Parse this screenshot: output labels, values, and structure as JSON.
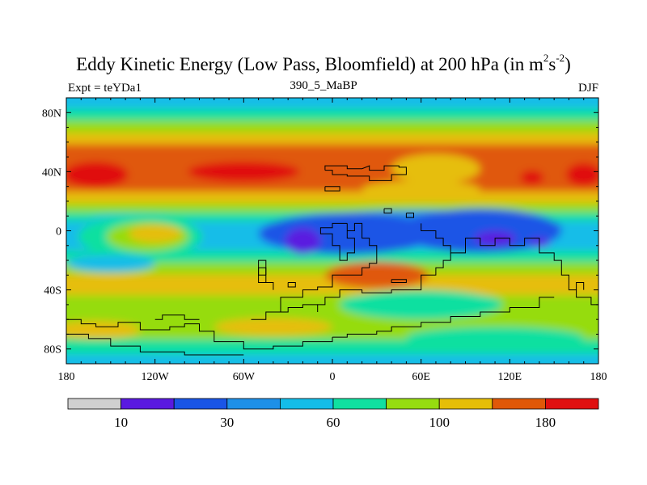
{
  "title_main": "Eddy Kinetic Energy (Low Pass, Bloomfield) at 200 hPa (in m",
  "title_sup1": "2",
  "title_mid": "s",
  "title_sup2": "-2",
  "title_end": ")",
  "expt_label": "Expt = teYDa1",
  "subtitle": "390_5_MaBP",
  "season": "DJF",
  "chart_data": {
    "type": "heatmap",
    "xlim": [
      -180,
      180
    ],
    "ylim": [
      -90,
      90
    ],
    "x_ticks": [
      {
        "value": -180,
        "label": "180"
      },
      {
        "value": -120,
        "label": "120W"
      },
      {
        "value": -60,
        "label": "60W"
      },
      {
        "value": 0,
        "label": "0"
      },
      {
        "value": 60,
        "label": "60E"
      },
      {
        "value": 120,
        "label": "120E"
      },
      {
        "value": 180,
        "label": "180"
      }
    ],
    "y_ticks": [
      {
        "value": 80,
        "label": "80N"
      },
      {
        "value": 40,
        "label": "40N"
      },
      {
        "value": 0,
        "label": "0"
      },
      {
        "value": -40,
        "label": "40S"
      },
      {
        "value": -80,
        "label": "80S"
      }
    ],
    "colorbar": {
      "levels": [
        10,
        20,
        30,
        45,
        60,
        80,
        100,
        140,
        180
      ],
      "labels": [
        {
          "level": 10,
          "text": "10"
        },
        {
          "level": 30,
          "text": "30"
        },
        {
          "level": 60,
          "text": "60"
        },
        {
          "level": 100,
          "text": "100"
        },
        {
          "level": 180,
          "text": "180"
        }
      ],
      "colors": [
        "#d0d0d0",
        "#5a1ae0",
        "#1a55e6",
        "#1e90e8",
        "#14bde8",
        "#10e0a0",
        "#96dc10",
        "#e6be08",
        "#e05808",
        "#e01010"
      ]
    },
    "bands": [
      {
        "lat_top": 90,
        "lat_bottom": 82,
        "level": 45
      },
      {
        "lat_top": 82,
        "lat_bottom": 74,
        "level": 60
      },
      {
        "lat_top": 74,
        "lat_bottom": 66,
        "level": 80
      },
      {
        "lat_top": 66,
        "lat_bottom": 58,
        "level": 100
      },
      {
        "lat_top": 58,
        "lat_bottom": 48,
        "level": 140
      },
      {
        "lat_top": 48,
        "lat_bottom": 36,
        "level": 140
      },
      {
        "lat_top": 36,
        "lat_bottom": 26,
        "level": 140
      },
      {
        "lat_top": 26,
        "lat_bottom": 18,
        "level": 100
      },
      {
        "lat_top": 18,
        "lat_bottom": 12,
        "level": 80
      },
      {
        "lat_top": 12,
        "lat_bottom": 6,
        "level": 60
      },
      {
        "lat_top": 6,
        "lat_bottom": -14,
        "level": 45
      },
      {
        "lat_top": -14,
        "lat_bottom": -22,
        "level": 60
      },
      {
        "lat_top": -22,
        "lat_bottom": -30,
        "level": 80
      },
      {
        "lat_top": -30,
        "lat_bottom": -44,
        "level": 100
      },
      {
        "lat_top": -44,
        "lat_bottom": -54,
        "level": 80
      },
      {
        "lat_top": -54,
        "lat_bottom": -64,
        "level": 80
      },
      {
        "lat_top": -64,
        "lat_bottom": -74,
        "level": 80
      },
      {
        "lat_top": -74,
        "lat_bottom": -84,
        "level": 60
      },
      {
        "lat_top": -84,
        "lat_bottom": -90,
        "level": 45
      }
    ],
    "blobs": [
      {
        "lon": -160,
        "lat": 38,
        "rlon": 22,
        "rlat": 9,
        "level": 180
      },
      {
        "lon": -60,
        "lat": 40,
        "rlon": 38,
        "rlat": 7,
        "level": 180
      },
      {
        "lon": 135,
        "lat": 36,
        "rlon": 8,
        "rlat": 5,
        "level": 180
      },
      {
        "lon": 170,
        "lat": 38,
        "rlon": 12,
        "rlat": 8,
        "level": 180
      },
      {
        "lon": 70,
        "lat": 42,
        "rlon": 30,
        "rlat": 10,
        "level": 100
      },
      {
        "lon": 60,
        "lat": 28,
        "rlon": 40,
        "rlat": 6,
        "level": 100
      },
      {
        "lon": -135,
        "lat": 6,
        "rlon": 30,
        "rlat": 5,
        "level": 45
      },
      {
        "lon": 60,
        "lat": 3,
        "rlon": 95,
        "rlat": 11,
        "level": 30
      },
      {
        "lon": 10,
        "lat": -2,
        "rlon": 60,
        "rlat": 14,
        "level": 20
      },
      {
        "lon": 100,
        "lat": 0,
        "rlon": 55,
        "rlat": 15,
        "level": 20
      },
      {
        "lon": -130,
        "lat": -4,
        "rlon": 42,
        "rlat": 14,
        "level": 60
      },
      {
        "lon": -125,
        "lat": -4,
        "rlon": 28,
        "rlat": 10,
        "level": 80
      },
      {
        "lon": -120,
        "lat": -2,
        "rlon": 18,
        "rlat": 6,
        "level": 100
      },
      {
        "lon": -20,
        "lat": -7,
        "rlon": 12,
        "rlat": 9,
        "level": 10
      },
      {
        "lon": 110,
        "lat": -5,
        "rlon": 14,
        "rlat": 5,
        "level": 10
      },
      {
        "lon": 140,
        "lat": -8,
        "rlon": 7,
        "rlat": 3,
        "level": 10
      },
      {
        "lon": -150,
        "lat": -22,
        "rlon": 30,
        "rlat": 6,
        "level": 45
      },
      {
        "lon": 30,
        "lat": -30,
        "rlon": 35,
        "rlat": 9,
        "level": 140
      },
      {
        "lon": 60,
        "lat": -50,
        "rlon": 55,
        "rlat": 10,
        "level": 60
      },
      {
        "lon": -40,
        "lat": -65,
        "rlon": 40,
        "rlat": 6,
        "level": 100
      },
      {
        "lon": -160,
        "lat": -67,
        "rlon": 30,
        "rlat": 6,
        "level": 100
      },
      {
        "lon": 110,
        "lat": -72,
        "rlon": 60,
        "rlat": 7,
        "level": 60
      }
    ],
    "coastlines": [
      [
        [
          -5,
          41
        ],
        [
          -5,
          44
        ],
        [
          10,
          44
        ],
        [
          10,
          42
        ],
        [
          20,
          42
        ],
        [
          25,
          44
        ],
        [
          25,
          41
        ],
        [
          35,
          41
        ],
        [
          35,
          44
        ],
        [
          45,
          44
        ],
        [
          45,
          43
        ],
        [
          50,
          43
        ],
        [
          50,
          38
        ],
        [
          40,
          38
        ],
        [
          40,
          34
        ],
        [
          25,
          34
        ],
        [
          25,
          37
        ],
        [
          10,
          37
        ],
        [
          10,
          38
        ],
        [
          0,
          38
        ],
        [
          0,
          41
        ],
        [
          -5,
          41
        ]
      ],
      [
        [
          -5,
          30
        ],
        [
          -5,
          27
        ],
        [
          5,
          27
        ],
        [
          5,
          30
        ],
        [
          -5,
          30
        ]
      ],
      [
        [
          35,
          15
        ],
        [
          35,
          12
        ],
        [
          40,
          12
        ],
        [
          40,
          15
        ],
        [
          35,
          15
        ]
      ],
      [
        [
          50,
          12
        ],
        [
          50,
          9
        ],
        [
          55,
          9
        ],
        [
          55,
          12
        ],
        [
          50,
          12
        ]
      ],
      [
        [
          10,
          5
        ],
        [
          10,
          -5
        ],
        [
          15,
          -5
        ],
        [
          15,
          -15
        ],
        [
          10,
          -15
        ],
        [
          10,
          -20
        ],
        [
          5,
          -20
        ],
        [
          5,
          -10
        ],
        [
          0,
          -10
        ],
        [
          0,
          -2
        ],
        [
          -8,
          -2
        ],
        [
          -8,
          2
        ],
        [
          0,
          2
        ],
        [
          0,
          5
        ],
        [
          10,
          5
        ]
      ],
      [
        [
          10,
          0
        ],
        [
          15,
          0
        ],
        [
          15,
          5
        ],
        [
          20,
          5
        ],
        [
          20,
          -5
        ],
        [
          25,
          -5
        ],
        [
          25,
          -10
        ],
        [
          30,
          -10
        ],
        [
          30,
          -22
        ],
        [
          25,
          -22
        ],
        [
          25,
          -25
        ],
        [
          20,
          -25
        ],
        [
          20,
          -30
        ],
        [
          10,
          -30
        ],
        [
          0,
          -30
        ],
        [
          0,
          -38
        ],
        [
          -10,
          -38
        ],
        [
          -10,
          -40
        ],
        [
          -20,
          -40
        ],
        [
          -20,
          -45
        ],
        [
          -35,
          -45
        ],
        [
          -35,
          -55
        ],
        [
          -45,
          -55
        ],
        [
          -45,
          -60
        ],
        [
          -55,
          -60
        ]
      ],
      [
        [
          -40,
          -40
        ],
        [
          -40,
          -35
        ],
        [
          -45,
          -35
        ],
        [
          -45,
          -25
        ],
        [
          -50,
          -25
        ],
        [
          -50,
          -35
        ],
        [
          -45,
          -35
        ]
      ],
      [
        [
          60,
          5
        ],
        [
          60,
          0
        ],
        [
          70,
          0
        ],
        [
          70,
          -5
        ],
        [
          75,
          -5
        ],
        [
          75,
          -10
        ],
        [
          80,
          -10
        ],
        [
          80,
          -15
        ],
        [
          90,
          -15
        ],
        [
          90,
          -5
        ],
        [
          100,
          -5
        ],
        [
          100,
          -10
        ],
        [
          110,
          -10
        ],
        [
          110,
          -5
        ],
        [
          120,
          -5
        ],
        [
          120,
          -10
        ],
        [
          130,
          -10
        ],
        [
          130,
          -5
        ],
        [
          140,
          -5
        ],
        [
          140,
          -15
        ],
        [
          150,
          -15
        ],
        [
          150,
          -20
        ],
        [
          155,
          -20
        ],
        [
          155,
          -30
        ],
        [
          160,
          -30
        ],
        [
          160,
          -40
        ],
        [
          165,
          -40
        ],
        [
          165,
          -45
        ],
        [
          175,
          -45
        ],
        [
          175,
          -50
        ],
        [
          180,
          -50
        ]
      ],
      [
        [
          80,
          -15
        ],
        [
          80,
          -20
        ],
        [
          75,
          -20
        ],
        [
          75,
          -25
        ],
        [
          70,
          -25
        ],
        [
          70,
          -30
        ],
        [
          60,
          -30
        ],
        [
          60,
          -40
        ],
        [
          40,
          -40
        ],
        [
          40,
          -42
        ],
        [
          20,
          -42
        ],
        [
          20,
          -40
        ],
        [
          5,
          -40
        ],
        [
          5,
          -45
        ],
        [
          -5,
          -45
        ],
        [
          -5,
          -50
        ],
        [
          -10,
          -50
        ],
        [
          -10,
          -55
        ]
      ],
      [
        [
          40,
          -33
        ],
        [
          40,
          -35
        ],
        [
          50,
          -35
        ],
        [
          50,
          -33
        ],
        [
          40,
          -33
        ]
      ],
      [
        [
          -45,
          -30
        ],
        [
          -45,
          -20
        ],
        [
          -50,
          -20
        ],
        [
          -50,
          -30
        ],
        [
          -45,
          -30
        ]
      ],
      [
        [
          -180,
          -60
        ],
        [
          -170,
          -60
        ],
        [
          -170,
          -63
        ],
        [
          -160,
          -63
        ],
        [
          -160,
          -65
        ],
        [
          -145,
          -65
        ],
        [
          -145,
          -62
        ],
        [
          -130,
          -62
        ],
        [
          -130,
          -67
        ],
        [
          -110,
          -67
        ],
        [
          -110,
          -65
        ],
        [
          -100,
          -65
        ],
        [
          -100,
          -63
        ],
        [
          -90,
          -63
        ],
        [
          -90,
          -68
        ],
        [
          -80,
          -68
        ],
        [
          -80,
          -75
        ],
        [
          -60,
          -75
        ],
        [
          -60,
          -80
        ],
        [
          -40,
          -80
        ],
        [
          -40,
          -78
        ],
        [
          -20,
          -78
        ],
        [
          -20,
          -75
        ],
        [
          0,
          -75
        ],
        [
          0,
          -72
        ]
      ],
      [
        [
          -180,
          -70
        ],
        [
          -165,
          -70
        ],
        [
          -165,
          -73
        ],
        [
          -150,
          -73
        ],
        [
          -150,
          -78
        ],
        [
          -130,
          -78
        ],
        [
          -130,
          -82
        ],
        [
          -100,
          -82
        ],
        [
          -100,
          -84
        ],
        [
          -60,
          -84
        ]
      ],
      [
        [
          -120,
          -60
        ],
        [
          -115,
          -60
        ],
        [
          -115,
          -57
        ],
        [
          -100,
          -57
        ],
        [
          -100,
          -60
        ],
        [
          -90,
          -60
        ]
      ],
      [
        [
          -45,
          -55
        ],
        [
          -30,
          -55
        ],
        [
          -30,
          -52
        ],
        [
          -20,
          -52
        ],
        [
          -20,
          -50
        ],
        [
          -10,
          -50
        ]
      ],
      [
        [
          0,
          -72
        ],
        [
          10,
          -72
        ],
        [
          10,
          -70
        ],
        [
          30,
          -70
        ],
        [
          30,
          -68
        ],
        [
          40,
          -68
        ],
        [
          40,
          -65
        ],
        [
          60,
          -65
        ],
        [
          60,
          -62
        ],
        [
          80,
          -62
        ],
        [
          80,
          -58
        ],
        [
          100,
          -58
        ],
        [
          100,
          -55
        ],
        [
          120,
          -55
        ],
        [
          120,
          -52
        ],
        [
          140,
          -52
        ],
        [
          140,
          -45
        ],
        [
          150,
          -45
        ]
      ],
      [
        [
          -30,
          -35
        ],
        [
          -30,
          -38
        ],
        [
          -25,
          -38
        ],
        [
          -25,
          -35
        ],
        [
          -30,
          -35
        ]
      ],
      [
        [
          165,
          -40
        ],
        [
          165,
          -35
        ],
        [
          170,
          -35
        ],
        [
          170,
          -40
        ]
      ]
    ]
  }
}
